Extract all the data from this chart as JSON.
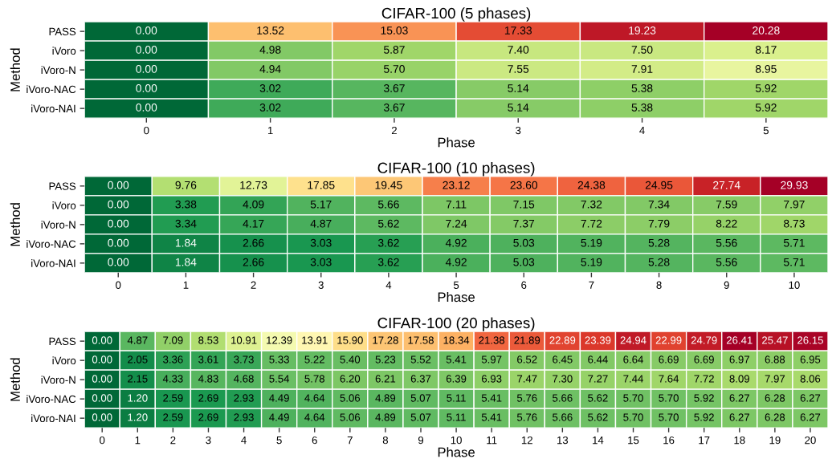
{
  "chart_data": [
    {
      "type": "heatmap",
      "title": "CIFAR-100 (5 phases)",
      "xlabel": "Phase",
      "ylabel": "Method",
      "categories": [
        "0",
        "1",
        "2",
        "3",
        "4",
        "5"
      ],
      "y_categories": [
        "PASS",
        "iVoro",
        "iVoro-N",
        "iVoro-NAC",
        "iVoro-NAI"
      ],
      "cells": [
        [
          0.0,
          13.52,
          15.03,
          17.33,
          19.23,
          20.28
        ],
        [
          0.0,
          4.98,
          5.87,
          7.4,
          7.5,
          8.17
        ],
        [
          0.0,
          4.94,
          5.7,
          7.55,
          7.91,
          8.95
        ],
        [
          0.0,
          3.02,
          3.67,
          5.14,
          5.38,
          5.92
        ],
        [
          0.0,
          3.02,
          3.67,
          5.14,
          5.38,
          5.92
        ]
      ],
      "cell_labels": [
        [
          "0.00",
          "13.52",
          "15.03",
          "17.33",
          "19.23",
          "20.28"
        ],
        [
          "0.00",
          "4.98",
          "5.87",
          "7.40",
          "7.50",
          "8.17"
        ],
        [
          "0.00",
          "4.94",
          "5.70",
          "7.55",
          "7.91",
          "8.95"
        ],
        [
          "0.00",
          "3.02",
          "3.67",
          "5.14",
          "5.38",
          "5.92"
        ],
        [
          "0.00",
          "3.02",
          "3.67",
          "5.14",
          "5.38",
          "5.92"
        ]
      ]
    },
    {
      "type": "heatmap",
      "title": "CIFAR-100 (10 phases)",
      "xlabel": "Phase",
      "ylabel": "Method",
      "categories": [
        "0",
        "1",
        "2",
        "3",
        "4",
        "5",
        "6",
        "7",
        "8",
        "9",
        "10"
      ],
      "y_categories": [
        "PASS",
        "iVoro",
        "iVoro-N",
        "iVoro-NAC",
        "iVoro-NAI"
      ],
      "cells": [
        [
          0.0,
          9.76,
          12.73,
          17.85,
          19.45,
          23.12,
          23.6,
          24.38,
          24.95,
          27.74,
          29.93
        ],
        [
          0.0,
          3.38,
          4.09,
          5.17,
          5.66,
          7.11,
          7.15,
          7.32,
          7.34,
          7.59,
          7.97
        ],
        [
          0.0,
          3.34,
          4.17,
          4.87,
          5.62,
          7.24,
          7.37,
          7.72,
          7.79,
          8.22,
          8.73
        ],
        [
          0.0,
          1.84,
          2.66,
          3.03,
          3.62,
          4.92,
          5.03,
          5.19,
          5.28,
          5.56,
          5.71
        ],
        [
          0.0,
          1.84,
          2.66,
          3.03,
          3.62,
          4.92,
          5.03,
          5.19,
          5.28,
          5.56,
          5.71
        ]
      ],
      "cell_labels": [
        [
          "0.00",
          "9.76",
          "12.73",
          "17.85",
          "19.45",
          "23.12",
          "23.60",
          "24.38",
          "24.95",
          "27.74",
          "29.93"
        ],
        [
          "0.00",
          "3.38",
          "4.09",
          "5.17",
          "5.66",
          "7.11",
          "7.15",
          "7.32",
          "7.34",
          "7.59",
          "7.97"
        ],
        [
          "0.00",
          "3.34",
          "4.17",
          "4.87",
          "5.62",
          "7.24",
          "7.37",
          "7.72",
          "7.79",
          "8.22",
          "8.73"
        ],
        [
          "0.00",
          "1.84",
          "2.66",
          "3.03",
          "3.62",
          "4.92",
          "5.03",
          "5.19",
          "5.28",
          "5.56",
          "5.71"
        ],
        [
          "0.00",
          "1.84",
          "2.66",
          "3.03",
          "3.62",
          "4.92",
          "5.03",
          "5.19",
          "5.28",
          "5.56",
          "5.71"
        ]
      ]
    },
    {
      "type": "heatmap",
      "title": "CIFAR-100 (20 phases)",
      "xlabel": "Phase",
      "ylabel": "Method",
      "categories": [
        "0",
        "1",
        "2",
        "3",
        "4",
        "5",
        "6",
        "7",
        "8",
        "9",
        "10",
        "11",
        "12",
        "13",
        "14",
        "15",
        "16",
        "17",
        "18",
        "19",
        "20"
      ],
      "y_categories": [
        "PASS",
        "iVoro",
        "iVoro-N",
        "iVoro-NAC",
        "iVoro-NAI"
      ],
      "cells": [
        [
          0.0,
          4.87,
          7.09,
          8.53,
          10.91,
          12.39,
          13.91,
          15.9,
          17.28,
          17.58,
          18.34,
          21.38,
          21.89,
          22.89,
          23.39,
          24.94,
          22.99,
          24.79,
          26.41,
          25.47,
          26.15
        ],
        [
          0.0,
          2.05,
          3.36,
          3.61,
          3.73,
          5.33,
          5.22,
          5.4,
          5.23,
          5.52,
          5.41,
          5.97,
          6.52,
          6.45,
          6.44,
          6.64,
          6.69,
          6.69,
          6.97,
          6.88,
          6.95
        ],
        [
          0.0,
          2.15,
          4.33,
          4.83,
          4.68,
          5.54,
          5.78,
          6.2,
          6.21,
          6.37,
          6.39,
          6.93,
          7.47,
          7.3,
          7.27,
          7.44,
          7.64,
          7.72,
          8.09,
          7.97,
          8.06
        ],
        [
          0.0,
          1.2,
          2.59,
          2.69,
          2.93,
          4.49,
          4.64,
          5.06,
          4.89,
          5.07,
          5.11,
          5.41,
          5.76,
          5.66,
          5.62,
          5.7,
          5.7,
          5.92,
          6.27,
          6.28,
          6.27
        ],
        [
          0.0,
          1.2,
          2.59,
          2.69,
          2.93,
          4.49,
          4.64,
          5.06,
          4.89,
          5.07,
          5.11,
          5.41,
          5.76,
          5.66,
          5.62,
          5.7,
          5.7,
          5.92,
          6.27,
          6.28,
          6.27
        ]
      ],
      "cell_labels": [
        [
          "0.00",
          "4.87",
          "7.09",
          "8.53",
          "10.91",
          "12.39",
          "13.91",
          "15.90",
          "17.28",
          "17.58",
          "18.34",
          "21.38",
          "21.89",
          "22.89",
          "23.39",
          "24.94",
          "22.99",
          "24.79",
          "26.41",
          "25.47",
          "26.15"
        ],
        [
          "0.00",
          "2.05",
          "3.36",
          "3.61",
          "3.73",
          "5.33",
          "5.22",
          "5.40",
          "5.23",
          "5.52",
          "5.41",
          "5.97",
          "6.52",
          "6.45",
          "6.44",
          "6.64",
          "6.69",
          "6.69",
          "6.97",
          "6.88",
          "6.95"
        ],
        [
          "0.00",
          "2.15",
          "4.33",
          "4.83",
          "4.68",
          "5.54",
          "5.78",
          "6.20",
          "6.21",
          "6.37",
          "6.39",
          "6.93",
          "7.47",
          "7.30",
          "7.27",
          "7.44",
          "7.64",
          "7.72",
          "8.09",
          "7.97",
          "8.06"
        ],
        [
          "0.00",
          "1.20",
          "2.59",
          "2.69",
          "2.93",
          "4.49",
          "4.64",
          "5.06",
          "4.89",
          "5.07",
          "5.11",
          "5.41",
          "5.76",
          "5.66",
          "5.62",
          "5.70",
          "5.70",
          "5.92",
          "6.27",
          "6.28",
          "6.27"
        ],
        [
          "0.00",
          "1.20",
          "2.59",
          "2.69",
          "2.93",
          "4.49",
          "4.64",
          "5.06",
          "4.89",
          "5.07",
          "5.11",
          "5.41",
          "5.76",
          "5.66",
          "5.62",
          "5.70",
          "5.70",
          "5.92",
          "6.27",
          "6.28",
          "6.27"
        ]
      ]
    }
  ]
}
